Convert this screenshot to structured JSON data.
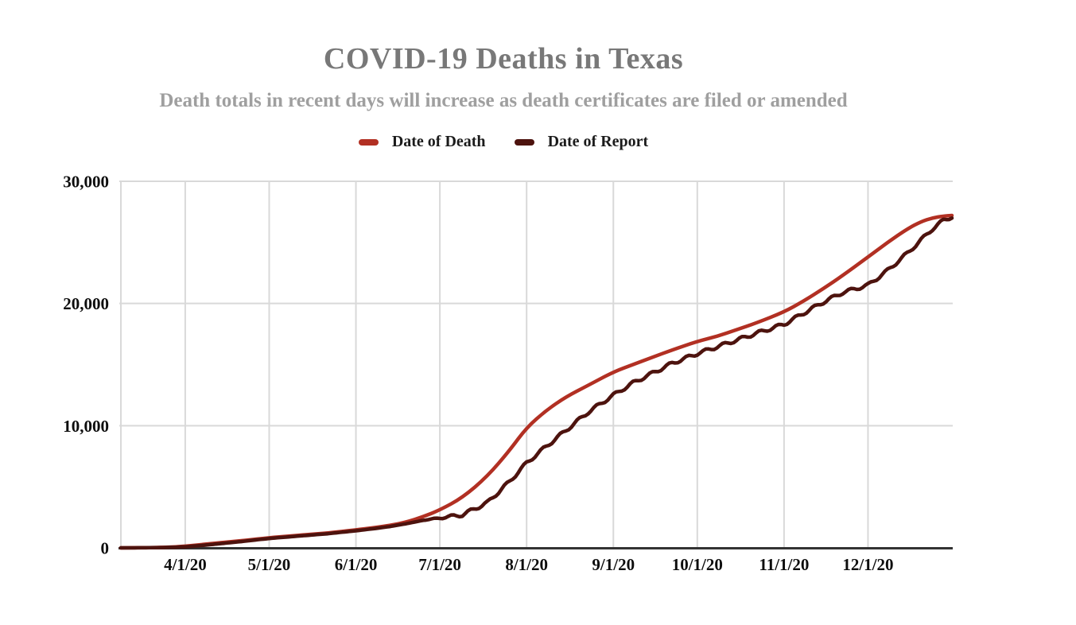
{
  "title": "COVID-19 Deaths in Texas",
  "subtitle": "Death totals in recent days will increase as death certificates are filed or amended",
  "legend": [
    {
      "label": "Date of Death",
      "color": "#b23023"
    },
    {
      "label": "Date of Report",
      "color": "#4d130e"
    }
  ],
  "chart_data": {
    "type": "line",
    "title": "COVID-19 Deaths in Texas",
    "subtitle": "Death totals in recent days will increase as death certificates are filed or amended",
    "legend_position": "top",
    "grid": true,
    "grid_color": "#d9d9d9",
    "axis_color": "#333333",
    "ylim": [
      0,
      30000
    ],
    "y_ticks": [
      0,
      10000,
      20000,
      30000
    ],
    "y_tick_labels": [
      "0",
      "10,000",
      "20,000",
      "30,000"
    ],
    "xlim_days": [
      0,
      297
    ],
    "x_tick_days": [
      23,
      53,
      84,
      114,
      145,
      176,
      206,
      237,
      267
    ],
    "x_tick_labels": [
      "4/1/20",
      "5/1/20",
      "6/1/20",
      "7/1/20",
      "8/1/20",
      "9/1/20",
      "10/1/20",
      "11/1/20",
      "12/1/20"
    ],
    "series": [
      {
        "name": "Date of Death",
        "color": "#b23023",
        "style": "smooth",
        "points": [
          [
            0,
            0
          ],
          [
            5,
            5
          ],
          [
            10,
            15
          ],
          [
            16,
            45
          ],
          [
            23,
            130
          ],
          [
            30,
            300
          ],
          [
            37,
            450
          ],
          [
            44,
            600
          ],
          [
            53,
            830
          ],
          [
            60,
            960
          ],
          [
            67,
            1090
          ],
          [
            74,
            1220
          ],
          [
            84,
            1470
          ],
          [
            90,
            1640
          ],
          [
            96,
            1830
          ],
          [
            102,
            2100
          ],
          [
            108,
            2550
          ],
          [
            114,
            3100
          ],
          [
            122,
            4100
          ],
          [
            131,
            5850
          ],
          [
            139,
            8000
          ],
          [
            145,
            9850
          ],
          [
            152,
            11250
          ],
          [
            159,
            12350
          ],
          [
            167,
            13300
          ],
          [
            176,
            14400
          ],
          [
            183,
            15000
          ],
          [
            190,
            15600
          ],
          [
            197,
            16200
          ],
          [
            206,
            16900
          ],
          [
            213,
            17300
          ],
          [
            220,
            17850
          ],
          [
            227,
            18400
          ],
          [
            237,
            19300
          ],
          [
            244,
            20200
          ],
          [
            251,
            21200
          ],
          [
            258,
            22300
          ],
          [
            267,
            23800
          ],
          [
            274,
            25000
          ],
          [
            281,
            26100
          ],
          [
            286,
            26700
          ],
          [
            290,
            27000
          ],
          [
            294,
            27150
          ],
          [
            297,
            27200
          ]
        ]
      },
      {
        "name": "Date of Report",
        "color": "#4d130e",
        "style": "jagged",
        "points": [
          [
            0,
            0
          ],
          [
            5,
            2
          ],
          [
            10,
            10
          ],
          [
            16,
            30
          ],
          [
            23,
            85
          ],
          [
            30,
            220
          ],
          [
            37,
            380
          ],
          [
            44,
            540
          ],
          [
            53,
            770
          ],
          [
            60,
            900
          ],
          [
            67,
            1030
          ],
          [
            74,
            1160
          ],
          [
            84,
            1400
          ],
          [
            90,
            1560
          ],
          [
            96,
            1740
          ],
          [
            102,
            1980
          ],
          [
            108,
            2250
          ],
          [
            114,
            2450
          ],
          [
            122,
            2700
          ],
          [
            131,
            3700
          ],
          [
            139,
            5450
          ],
          [
            145,
            6950
          ],
          [
            152,
            8300
          ],
          [
            159,
            9600
          ],
          [
            167,
            11100
          ],
          [
            176,
            12500
          ],
          [
            183,
            13500
          ],
          [
            190,
            14300
          ],
          [
            197,
            15100
          ],
          [
            206,
            15900
          ],
          [
            213,
            16450
          ],
          [
            220,
            17000
          ],
          [
            227,
            17550
          ],
          [
            237,
            18300
          ],
          [
            244,
            19200
          ],
          [
            251,
            20100
          ],
          [
            258,
            20900
          ],
          [
            267,
            21500
          ],
          [
            274,
            22700
          ],
          [
            281,
            24100
          ],
          [
            286,
            25200
          ],
          [
            290,
            26100
          ],
          [
            294,
            26800
          ],
          [
            297,
            27100
          ]
        ]
      }
    ]
  }
}
